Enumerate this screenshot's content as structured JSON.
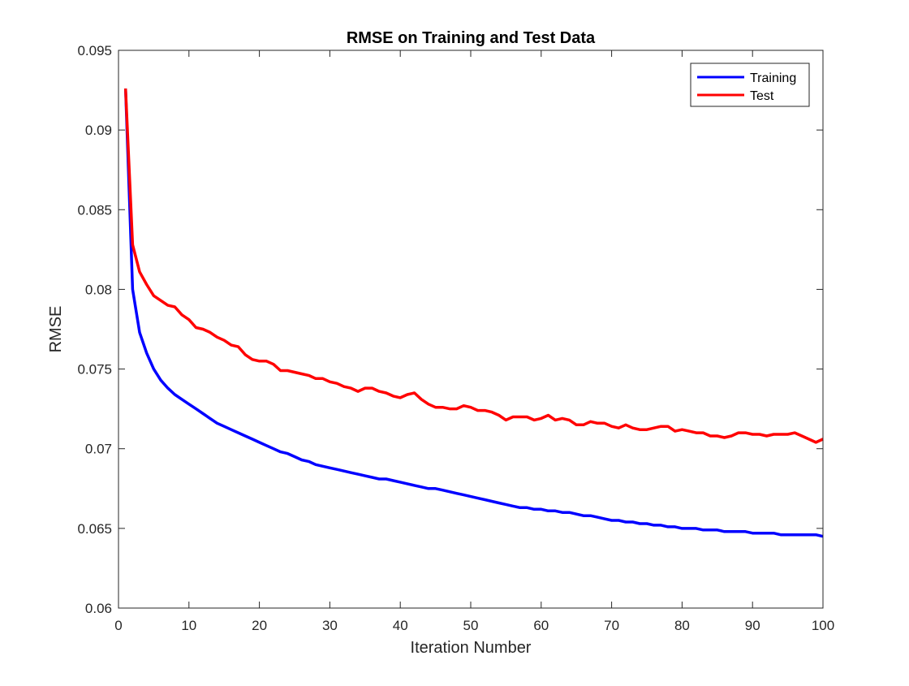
{
  "chart_data": {
    "type": "line",
    "title": "RMSE on Training and Test Data",
    "xlabel": "Iteration Number",
    "ylabel": "RMSE",
    "xlim": [
      0,
      100
    ],
    "ylim": [
      0.06,
      0.095
    ],
    "x_ticks": [
      "0",
      "10",
      "20",
      "30",
      "40",
      "50",
      "60",
      "70",
      "80",
      "90",
      "100"
    ],
    "y_ticks": [
      "0.06",
      "0.065",
      "0.07",
      "0.075",
      "0.08",
      "0.085",
      "0.09",
      "0.095"
    ],
    "legend_position": "top-right",
    "grid": false,
    "series": [
      {
        "name": "Training",
        "color": "#0000ff",
        "x": [
          1,
          2,
          3,
          4,
          5,
          6,
          7,
          8,
          9,
          10,
          11,
          12,
          13,
          14,
          15,
          16,
          17,
          18,
          19,
          20,
          21,
          22,
          23,
          24,
          25,
          26,
          27,
          28,
          29,
          30,
          31,
          32,
          33,
          34,
          35,
          36,
          37,
          38,
          39,
          40,
          41,
          42,
          43,
          44,
          45,
          46,
          47,
          48,
          49,
          50,
          51,
          52,
          53,
          54,
          55,
          56,
          57,
          58,
          59,
          60,
          61,
          62,
          63,
          64,
          65,
          66,
          67,
          68,
          69,
          70,
          71,
          72,
          73,
          74,
          75,
          76,
          77,
          78,
          79,
          80,
          81,
          82,
          83,
          84,
          85,
          86,
          87,
          88,
          89,
          90,
          91,
          92,
          93,
          94,
          95,
          96,
          97,
          98,
          99,
          100
        ],
        "values": [
          0.0926,
          0.08,
          0.0773,
          0.076,
          0.075,
          0.0743,
          0.0738,
          0.0734,
          0.0731,
          0.0728,
          0.0725,
          0.0722,
          0.0719,
          0.0716,
          0.0714,
          0.0712,
          0.071,
          0.0708,
          0.0706,
          0.0704,
          0.0702,
          0.07,
          0.0698,
          0.0697,
          0.0695,
          0.0693,
          0.0692,
          0.069,
          0.0689,
          0.0688,
          0.0687,
          0.0686,
          0.0685,
          0.0684,
          0.0683,
          0.0682,
          0.0681,
          0.0681,
          0.068,
          0.0679,
          0.0678,
          0.0677,
          0.0676,
          0.0675,
          0.0675,
          0.0674,
          0.0673,
          0.0672,
          0.0671,
          0.067,
          0.0669,
          0.0668,
          0.0667,
          0.0666,
          0.0665,
          0.0664,
          0.0663,
          0.0663,
          0.0662,
          0.0662,
          0.0661,
          0.0661,
          0.066,
          0.066,
          0.0659,
          0.0658,
          0.0658,
          0.0657,
          0.0656,
          0.0655,
          0.0655,
          0.0654,
          0.0654,
          0.0653,
          0.0653,
          0.0652,
          0.0652,
          0.0651,
          0.0651,
          0.065,
          0.065,
          0.065,
          0.0649,
          0.0649,
          0.0649,
          0.0648,
          0.0648,
          0.0648,
          0.0648,
          0.0647,
          0.0647,
          0.0647,
          0.0647,
          0.0646,
          0.0646,
          0.0646,
          0.0646,
          0.0646,
          0.0646,
          0.0645
        ]
      },
      {
        "name": "Test",
        "color": "#ff0000",
        "x": [
          1,
          2,
          3,
          4,
          5,
          6,
          7,
          8,
          9,
          10,
          11,
          12,
          13,
          14,
          15,
          16,
          17,
          18,
          19,
          20,
          21,
          22,
          23,
          24,
          25,
          26,
          27,
          28,
          29,
          30,
          31,
          32,
          33,
          34,
          35,
          36,
          37,
          38,
          39,
          40,
          41,
          42,
          43,
          44,
          45,
          46,
          47,
          48,
          49,
          50,
          51,
          52,
          53,
          54,
          55,
          56,
          57,
          58,
          59,
          60,
          61,
          62,
          63,
          64,
          65,
          66,
          67,
          68,
          69,
          70,
          71,
          72,
          73,
          74,
          75,
          76,
          77,
          78,
          79,
          80,
          81,
          82,
          83,
          84,
          85,
          86,
          87,
          88,
          89,
          90,
          91,
          92,
          93,
          94,
          95,
          96,
          97,
          98,
          99,
          100
        ],
        "values": [
          0.0926,
          0.0828,
          0.0811,
          0.0803,
          0.0796,
          0.0793,
          0.079,
          0.0789,
          0.0784,
          0.0781,
          0.0776,
          0.0775,
          0.0773,
          0.077,
          0.0768,
          0.0765,
          0.0764,
          0.0759,
          0.0756,
          0.0755,
          0.0755,
          0.0753,
          0.0749,
          0.0749,
          0.0748,
          0.0747,
          0.0746,
          0.0744,
          0.0744,
          0.0742,
          0.0741,
          0.0739,
          0.0738,
          0.0736,
          0.0738,
          0.0738,
          0.0736,
          0.0735,
          0.0733,
          0.0732,
          0.0734,
          0.0735,
          0.0731,
          0.0728,
          0.0726,
          0.0726,
          0.0725,
          0.0725,
          0.0727,
          0.0726,
          0.0724,
          0.0724,
          0.0723,
          0.0721,
          0.0718,
          0.072,
          0.072,
          0.072,
          0.0718,
          0.0719,
          0.0721,
          0.0718,
          0.0719,
          0.0718,
          0.0715,
          0.0715,
          0.0717,
          0.0716,
          0.0716,
          0.0714,
          0.0713,
          0.0715,
          0.0713,
          0.0712,
          0.0712,
          0.0713,
          0.0714,
          0.0714,
          0.0711,
          0.0712,
          0.0711,
          0.071,
          0.071,
          0.0708,
          0.0708,
          0.0707,
          0.0708,
          0.071,
          0.071,
          0.0709,
          0.0709,
          0.0708,
          0.0709,
          0.0709,
          0.0709,
          0.071,
          0.0708,
          0.0706,
          0.0704,
          0.0706
        ]
      }
    ]
  }
}
